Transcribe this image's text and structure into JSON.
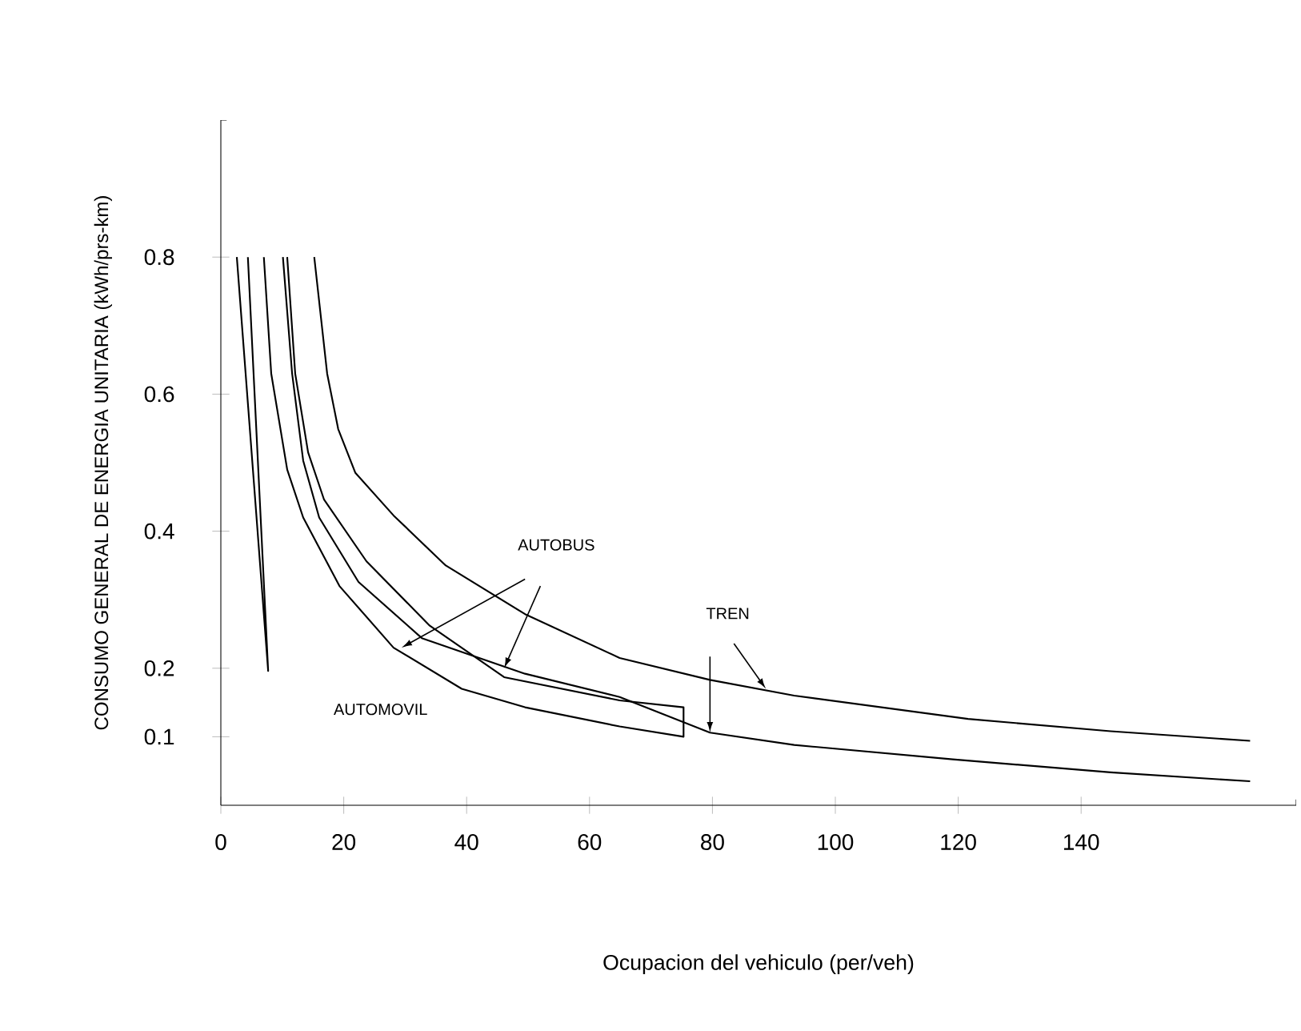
{
  "chart_data": {
    "type": "line",
    "xlabel": "Ocupacion del vehiculo (per/veh)",
    "ylabel": "CONSUMO GENERAL DE ENERGIA UNITARIA (kWh/prs-km)",
    "xlim": [
      0,
      175
    ],
    "ylim": [
      0,
      1.0
    ],
    "xticks": [
      0,
      20,
      40,
      60,
      80,
      100,
      120,
      140
    ],
    "yticks": [
      0.1,
      0.2,
      0.4,
      0.6,
      0.8
    ],
    "legend": false,
    "grid": false,
    "marker": "none",
    "line_style": "solid",
    "series": [
      {
        "color": "#000000",
        "x": [
          2.6,
          7.7,
          4.4
        ],
        "values": [
          0.8,
          0.196,
          0.8
        ]
      },
      {
        "color": "#000000",
        "x": [
          7.0,
          8.2,
          10.8,
          13.4,
          19.3,
          28.1,
          39.2,
          49.5,
          64.9,
          75.3,
          75.3,
          64.9,
          46.1,
          34.0,
          23.7,
          16.8,
          14.2,
          12.1,
          10.8
        ],
        "values": [
          0.8,
          0.63,
          0.49,
          0.42,
          0.32,
          0.23,
          0.17,
          0.143,
          0.115,
          0.1,
          0.143,
          0.153,
          0.187,
          0.262,
          0.356,
          0.446,
          0.515,
          0.63,
          0.8
        ]
      },
      {
        "color": "#000000",
        "x": [
          10.1,
          11.6,
          13.4,
          16.0,
          22.4,
          32.7,
          49.5,
          64.9,
          79.6,
          93.3,
          119.1,
          144.8,
          167.5
        ],
        "values": [
          0.8,
          0.63,
          0.503,
          0.42,
          0.326,
          0.244,
          0.192,
          0.158,
          0.106,
          0.088,
          0.067,
          0.048,
          0.035
        ]
      },
      {
        "color": "#000000",
        "x": [
          15.2,
          17.3,
          19.1,
          21.9,
          28.1,
          36.6,
          49.5,
          64.9,
          79.6,
          93.3,
          121.6,
          144.8,
          167.5
        ],
        "values": [
          0.8,
          0.63,
          0.549,
          0.485,
          0.423,
          0.35,
          0.279,
          0.215,
          0.183,
          0.16,
          0.126,
          0.108,
          0.094
        ]
      }
    ],
    "annotations": [
      "AUTOMOVIL",
      "AUTOBUS",
      "TREN"
    ]
  }
}
